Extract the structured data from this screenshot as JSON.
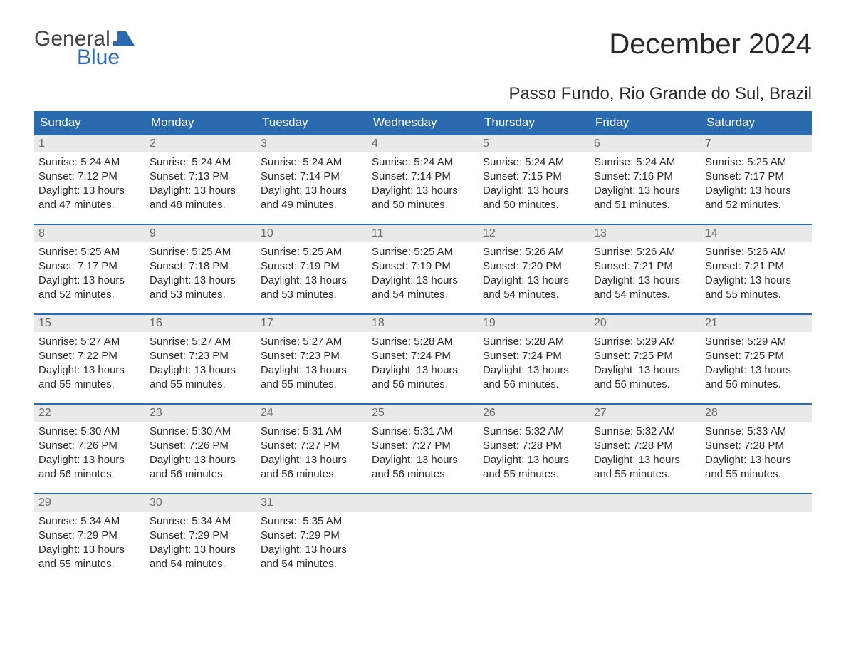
{
  "logo": {
    "line1": "General",
    "line2": "Blue"
  },
  "title": "December 2024",
  "subtitle": "Passo Fundo, Rio Grande do Sul, Brazil",
  "colors": {
    "headerBg": "#2a6bb0",
    "headerText": "#ffffff",
    "dayNumBg": "#e9e9e9",
    "dayNumText": "#6b6b6b",
    "bodyText": "#2a2a2a",
    "weekBorder": "#2a6bb0",
    "pageBg": "#ffffff",
    "logoGray": "#444444",
    "logoBlue": "#2a6bb0"
  },
  "typography": {
    "titleSize": 40,
    "subtitleSize": 24,
    "headerSize": 17,
    "cellSize": 15,
    "dayNumSize": 16,
    "logoSize": 30
  },
  "weekdayHeaders": [
    "Sunday",
    "Monday",
    "Tuesday",
    "Wednesday",
    "Thursday",
    "Friday",
    "Saturday"
  ],
  "weeks": [
    [
      {
        "day": "1",
        "sunrise": "Sunrise: 5:24 AM",
        "sunset": "Sunset: 7:12 PM",
        "daylight1": "Daylight: 13 hours",
        "daylight2": "and 47 minutes."
      },
      {
        "day": "2",
        "sunrise": "Sunrise: 5:24 AM",
        "sunset": "Sunset: 7:13 PM",
        "daylight1": "Daylight: 13 hours",
        "daylight2": "and 48 minutes."
      },
      {
        "day": "3",
        "sunrise": "Sunrise: 5:24 AM",
        "sunset": "Sunset: 7:14 PM",
        "daylight1": "Daylight: 13 hours",
        "daylight2": "and 49 minutes."
      },
      {
        "day": "4",
        "sunrise": "Sunrise: 5:24 AM",
        "sunset": "Sunset: 7:14 PM",
        "daylight1": "Daylight: 13 hours",
        "daylight2": "and 50 minutes."
      },
      {
        "day": "5",
        "sunrise": "Sunrise: 5:24 AM",
        "sunset": "Sunset: 7:15 PM",
        "daylight1": "Daylight: 13 hours",
        "daylight2": "and 50 minutes."
      },
      {
        "day": "6",
        "sunrise": "Sunrise: 5:24 AM",
        "sunset": "Sunset: 7:16 PM",
        "daylight1": "Daylight: 13 hours",
        "daylight2": "and 51 minutes."
      },
      {
        "day": "7",
        "sunrise": "Sunrise: 5:25 AM",
        "sunset": "Sunset: 7:17 PM",
        "daylight1": "Daylight: 13 hours",
        "daylight2": "and 52 minutes."
      }
    ],
    [
      {
        "day": "8",
        "sunrise": "Sunrise: 5:25 AM",
        "sunset": "Sunset: 7:17 PM",
        "daylight1": "Daylight: 13 hours",
        "daylight2": "and 52 minutes."
      },
      {
        "day": "9",
        "sunrise": "Sunrise: 5:25 AM",
        "sunset": "Sunset: 7:18 PM",
        "daylight1": "Daylight: 13 hours",
        "daylight2": "and 53 minutes."
      },
      {
        "day": "10",
        "sunrise": "Sunrise: 5:25 AM",
        "sunset": "Sunset: 7:19 PM",
        "daylight1": "Daylight: 13 hours",
        "daylight2": "and 53 minutes."
      },
      {
        "day": "11",
        "sunrise": "Sunrise: 5:25 AM",
        "sunset": "Sunset: 7:19 PM",
        "daylight1": "Daylight: 13 hours",
        "daylight2": "and 54 minutes."
      },
      {
        "day": "12",
        "sunrise": "Sunrise: 5:26 AM",
        "sunset": "Sunset: 7:20 PM",
        "daylight1": "Daylight: 13 hours",
        "daylight2": "and 54 minutes."
      },
      {
        "day": "13",
        "sunrise": "Sunrise: 5:26 AM",
        "sunset": "Sunset: 7:21 PM",
        "daylight1": "Daylight: 13 hours",
        "daylight2": "and 54 minutes."
      },
      {
        "day": "14",
        "sunrise": "Sunrise: 5:26 AM",
        "sunset": "Sunset: 7:21 PM",
        "daylight1": "Daylight: 13 hours",
        "daylight2": "and 55 minutes."
      }
    ],
    [
      {
        "day": "15",
        "sunrise": "Sunrise: 5:27 AM",
        "sunset": "Sunset: 7:22 PM",
        "daylight1": "Daylight: 13 hours",
        "daylight2": "and 55 minutes."
      },
      {
        "day": "16",
        "sunrise": "Sunrise: 5:27 AM",
        "sunset": "Sunset: 7:23 PM",
        "daylight1": "Daylight: 13 hours",
        "daylight2": "and 55 minutes."
      },
      {
        "day": "17",
        "sunrise": "Sunrise: 5:27 AM",
        "sunset": "Sunset: 7:23 PM",
        "daylight1": "Daylight: 13 hours",
        "daylight2": "and 55 minutes."
      },
      {
        "day": "18",
        "sunrise": "Sunrise: 5:28 AM",
        "sunset": "Sunset: 7:24 PM",
        "daylight1": "Daylight: 13 hours",
        "daylight2": "and 56 minutes."
      },
      {
        "day": "19",
        "sunrise": "Sunrise: 5:28 AM",
        "sunset": "Sunset: 7:24 PM",
        "daylight1": "Daylight: 13 hours",
        "daylight2": "and 56 minutes."
      },
      {
        "day": "20",
        "sunrise": "Sunrise: 5:29 AM",
        "sunset": "Sunset: 7:25 PM",
        "daylight1": "Daylight: 13 hours",
        "daylight2": "and 56 minutes."
      },
      {
        "day": "21",
        "sunrise": "Sunrise: 5:29 AM",
        "sunset": "Sunset: 7:25 PM",
        "daylight1": "Daylight: 13 hours",
        "daylight2": "and 56 minutes."
      }
    ],
    [
      {
        "day": "22",
        "sunrise": "Sunrise: 5:30 AM",
        "sunset": "Sunset: 7:26 PM",
        "daylight1": "Daylight: 13 hours",
        "daylight2": "and 56 minutes."
      },
      {
        "day": "23",
        "sunrise": "Sunrise: 5:30 AM",
        "sunset": "Sunset: 7:26 PM",
        "daylight1": "Daylight: 13 hours",
        "daylight2": "and 56 minutes."
      },
      {
        "day": "24",
        "sunrise": "Sunrise: 5:31 AM",
        "sunset": "Sunset: 7:27 PM",
        "daylight1": "Daylight: 13 hours",
        "daylight2": "and 56 minutes."
      },
      {
        "day": "25",
        "sunrise": "Sunrise: 5:31 AM",
        "sunset": "Sunset: 7:27 PM",
        "daylight1": "Daylight: 13 hours",
        "daylight2": "and 56 minutes."
      },
      {
        "day": "26",
        "sunrise": "Sunrise: 5:32 AM",
        "sunset": "Sunset: 7:28 PM",
        "daylight1": "Daylight: 13 hours",
        "daylight2": "and 55 minutes."
      },
      {
        "day": "27",
        "sunrise": "Sunrise: 5:32 AM",
        "sunset": "Sunset: 7:28 PM",
        "daylight1": "Daylight: 13 hours",
        "daylight2": "and 55 minutes."
      },
      {
        "day": "28",
        "sunrise": "Sunrise: 5:33 AM",
        "sunset": "Sunset: 7:28 PM",
        "daylight1": "Daylight: 13 hours",
        "daylight2": "and 55 minutes."
      }
    ],
    [
      {
        "day": "29",
        "sunrise": "Sunrise: 5:34 AM",
        "sunset": "Sunset: 7:29 PM",
        "daylight1": "Daylight: 13 hours",
        "daylight2": "and 55 minutes."
      },
      {
        "day": "30",
        "sunrise": "Sunrise: 5:34 AM",
        "sunset": "Sunset: 7:29 PM",
        "daylight1": "Daylight: 13 hours",
        "daylight2": "and 54 minutes."
      },
      {
        "day": "31",
        "sunrise": "Sunrise: 5:35 AM",
        "sunset": "Sunset: 7:29 PM",
        "daylight1": "Daylight: 13 hours",
        "daylight2": "and 54 minutes."
      },
      {
        "empty": true
      },
      {
        "empty": true
      },
      {
        "empty": true
      },
      {
        "empty": true
      }
    ]
  ]
}
